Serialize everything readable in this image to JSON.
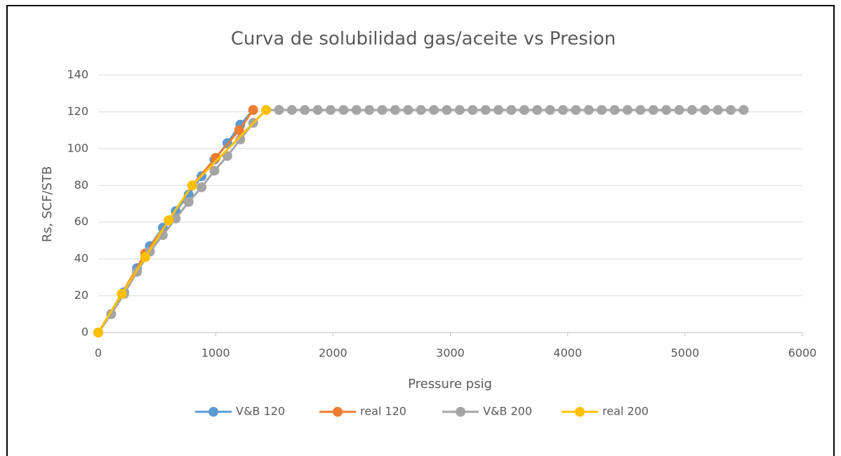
{
  "chart_data": {
    "type": "line",
    "title": "Curva de solubilidad gas/aceite vs Presion",
    "x_label": "Pressure psig",
    "y_label": "Rs, SCF/STB",
    "xlim": [
      0,
      6000
    ],
    "xticks": [
      0,
      1000,
      2000,
      3000,
      4000,
      5000,
      6000
    ],
    "ylim": [
      0,
      140
    ],
    "yticks": [
      0,
      20,
      40,
      60,
      80,
      100,
      120,
      140
    ],
    "grid": true,
    "legend": "bottom",
    "series": [
      {
        "name": "V&B 120",
        "color": "#5b9bd5",
        "x": [
          0,
          110,
          220,
          330,
          440,
          550,
          660,
          770,
          880,
          990,
          1100,
          1210,
          1320
        ],
        "values": [
          0,
          10,
          22,
          35,
          47,
          57,
          66,
          75,
          85,
          94,
          103,
          113,
          121
        ]
      },
      {
        "name": "real 120",
        "color": "#ed7d31",
        "x": [
          0,
          200,
          400,
          600,
          800,
          1000,
          1200,
          1320
        ],
        "values": [
          0,
          21,
          43,
          61,
          80,
          95,
          110,
          121
        ]
      },
      {
        "name": "V&B 200",
        "color": "#a5a5a5",
        "x": [
          0,
          110,
          220,
          330,
          440,
          550,
          660,
          770,
          880,
          990,
          1100,
          1210,
          1320,
          1430,
          1540,
          1650,
          1760,
          1870,
          1980,
          2090,
          2200,
          2310,
          2420,
          2530,
          2640,
          2750,
          2860,
          2970,
          3080,
          3190,
          3300,
          3410,
          3520,
          3630,
          3740,
          3850,
          3960,
          4070,
          4180,
          4290,
          4400,
          4510,
          4620,
          4730,
          4840,
          4950,
          5060,
          5170,
          5280,
          5390,
          5500
        ],
        "values": [
          0,
          10,
          21,
          33,
          44,
          53,
          62,
          71,
          79,
          88,
          96,
          105,
          114,
          121,
          121,
          121,
          121,
          121,
          121,
          121,
          121,
          121,
          121,
          121,
          121,
          121,
          121,
          121,
          121,
          121,
          121,
          121,
          121,
          121,
          121,
          121,
          121,
          121,
          121,
          121,
          121,
          121,
          121,
          121,
          121,
          121,
          121,
          121,
          121,
          121,
          121
        ]
      },
      {
        "name": "real 200",
        "color": "#ffc000",
        "x": [
          0,
          200,
          400,
          600,
          800,
          1430
        ],
        "values": [
          0,
          21,
          41,
          61,
          80,
          121
        ]
      }
    ]
  }
}
